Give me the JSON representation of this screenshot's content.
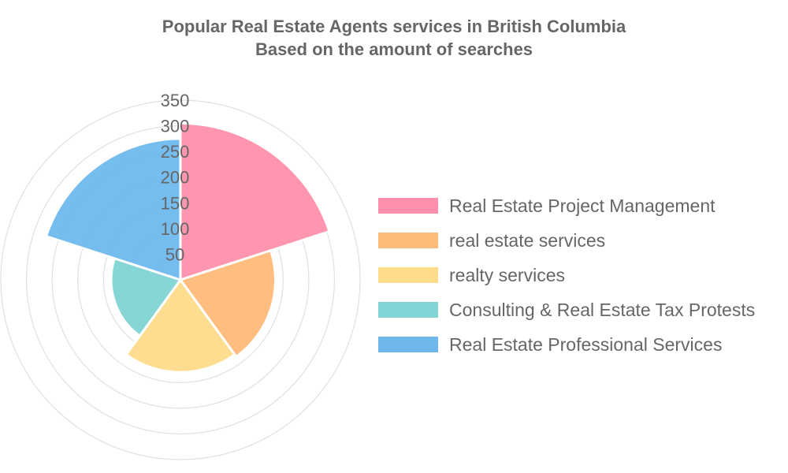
{
  "chart_data": {
    "type": "polarArea",
    "title_lines": [
      "Popular Real Estate Agents services in British Columbia",
      "Based on the amount of searches"
    ],
    "categories": [
      "Real Estate Project Management",
      "real estate services",
      "realty services",
      "Consulting & Real Estate Tax Protests",
      "Real Estate Professional Services"
    ],
    "values": [
      305,
      185,
      180,
      135,
      275
    ],
    "colors": [
      "#ff8fab",
      "#ffbb78",
      "#ffdb8a",
      "#80d4d4",
      "#6eb8ee"
    ],
    "r_axis": {
      "min": 0,
      "max": 350,
      "ticks": [
        50,
        100,
        150,
        200,
        250,
        300,
        350
      ]
    },
    "grid": true,
    "legend_position": "right"
  }
}
